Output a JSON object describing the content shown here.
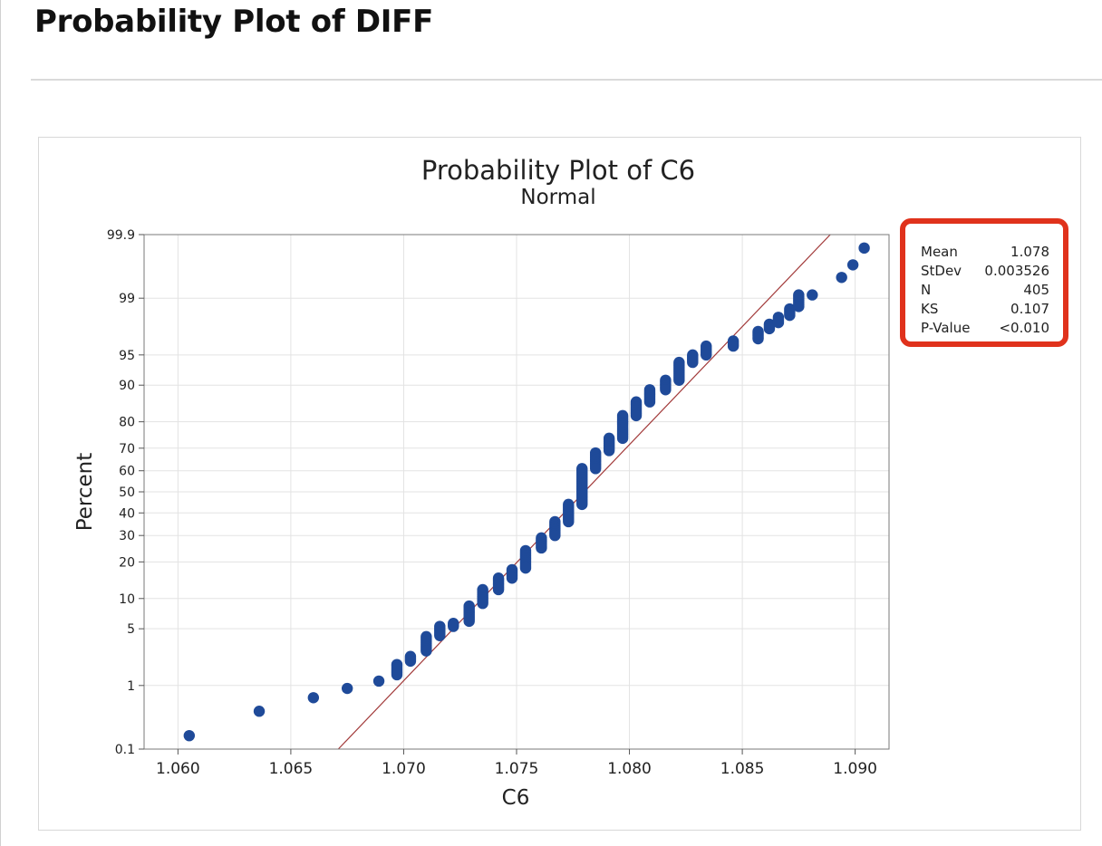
{
  "page": {
    "heading": "Probability Plot of DIFF"
  },
  "chart_data": {
    "type": "scatter",
    "title": "Probability Plot of C6",
    "subtitle": "Normal",
    "xlabel": "C6",
    "ylabel": "Percent",
    "xlim": [
      1.0585,
      1.0915
    ],
    "xticks": [
      "1.060",
      "1.065",
      "1.070",
      "1.075",
      "1.080",
      "1.085",
      "1.090"
    ],
    "ylim": [
      0.1,
      99.9
    ],
    "yscale": "normal-probability",
    "yticks": [
      "0.1",
      "1",
      "5",
      "10",
      "20",
      "30",
      "40",
      "50",
      "60",
      "70",
      "80",
      "90",
      "95",
      "99",
      "99.9"
    ],
    "grid": true,
    "fit_line": {
      "mean": 1.078,
      "stdev": 0.003526
    },
    "stats_box": {
      "labels": [
        "Mean",
        "StDev",
        "N",
        "KS",
        "P-Value"
      ],
      "values": [
        "1.078",
        "0.003526",
        "405",
        "0.107",
        "<0.010"
      ],
      "highlight_color": "#e0321c"
    },
    "colors": {
      "points": "#1f4a99",
      "fit_line": "#a23a3a",
      "grid": "#e3e3e3"
    },
    "n": 405,
    "groups": [
      {
        "x": 1.0605,
        "p_low": 0.17,
        "p_high": 0.17
      },
      {
        "x": 1.0636,
        "p_low": 0.42,
        "p_high": 0.42
      },
      {
        "x": 1.066,
        "p_low": 0.67,
        "p_high": 0.67
      },
      {
        "x": 1.0675,
        "p_low": 0.91,
        "p_high": 0.91
      },
      {
        "x": 1.0689,
        "p_low": 1.15,
        "p_high": 1.15
      },
      {
        "x": 1.0697,
        "p_low": 1.4,
        "p_high": 1.9
      },
      {
        "x": 1.0703,
        "p_low": 2.1,
        "p_high": 2.4
      },
      {
        "x": 1.071,
        "p_low": 2.8,
        "p_high": 4.1
      },
      {
        "x": 1.0716,
        "p_low": 4.2,
        "p_high": 5.3
      },
      {
        "x": 1.0722,
        "p_low": 5.3,
        "p_high": 5.7
      },
      {
        "x": 1.0729,
        "p_low": 6.0,
        "p_high": 8.5
      },
      {
        "x": 1.0735,
        "p_low": 9.0,
        "p_high": 12.0
      },
      {
        "x": 1.0742,
        "p_low": 12.0,
        "p_high": 15.0
      },
      {
        "x": 1.0748,
        "p_low": 15.0,
        "p_high": 17.5
      },
      {
        "x": 1.0754,
        "p_low": 18.0,
        "p_high": 24.0
      },
      {
        "x": 1.0761,
        "p_low": 25.0,
        "p_high": 29.0
      },
      {
        "x": 1.0767,
        "p_low": 30.0,
        "p_high": 36.0
      },
      {
        "x": 1.0773,
        "p_low": 36.0,
        "p_high": 44.0
      },
      {
        "x": 1.0779,
        "p_low": 44.0,
        "p_high": 61.0
      },
      {
        "x": 1.0785,
        "p_low": 61.0,
        "p_high": 68.0
      },
      {
        "x": 1.0791,
        "p_low": 69.0,
        "p_high": 74.0
      },
      {
        "x": 1.0797,
        "p_low": 74.0,
        "p_high": 82.0
      },
      {
        "x": 1.0803,
        "p_low": 82.0,
        "p_high": 86.0
      },
      {
        "x": 1.0809,
        "p_low": 86.0,
        "p_high": 89.0
      },
      {
        "x": 1.0816,
        "p_low": 89.0,
        "p_high": 91.0
      },
      {
        "x": 1.0822,
        "p_low": 91.0,
        "p_high": 94.0
      },
      {
        "x": 1.0828,
        "p_low": 94.0,
        "p_high": 95.0
      },
      {
        "x": 1.0834,
        "p_low": 95.0,
        "p_high": 96.0
      },
      {
        "x": 1.0846,
        "p_low": 96.0,
        "p_high": 96.5
      },
      {
        "x": 1.0857,
        "p_low": 96.7,
        "p_high": 97.3
      },
      {
        "x": 1.0862,
        "p_low": 97.5,
        "p_high": 97.8
      },
      {
        "x": 1.0866,
        "p_low": 97.9,
        "p_high": 98.2
      },
      {
        "x": 1.0871,
        "p_low": 98.3,
        "p_high": 98.6
      },
      {
        "x": 1.0875,
        "p_low": 98.7,
        "p_high": 99.1
      },
      {
        "x": 1.0881,
        "p_low": 99.1,
        "p_high": 99.1
      },
      {
        "x": 1.0894,
        "p_low": 99.5,
        "p_high": 99.5
      },
      {
        "x": 1.0899,
        "p_low": 99.68,
        "p_high": 99.68
      },
      {
        "x": 1.0904,
        "p_low": 99.83,
        "p_high": 99.83
      }
    ]
  }
}
